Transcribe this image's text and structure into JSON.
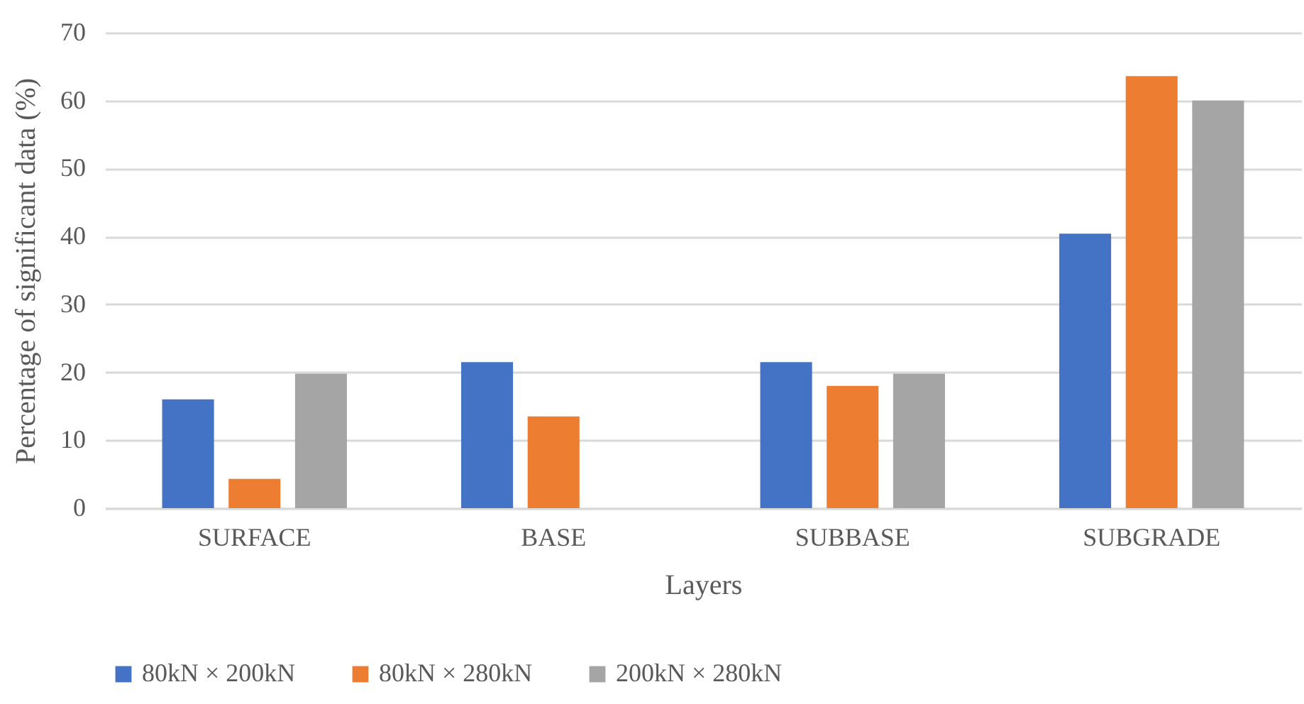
{
  "chart_data": {
    "type": "bar",
    "xlabel": "Layers",
    "ylabel": "Percentage of significant data (%)",
    "categories": [
      "SURFACE",
      "BASE",
      "SUBBASE",
      "SUBGRADE"
    ],
    "series": [
      {
        "name": "80kN × 200kN",
        "color": "#4472c4",
        "values": [
          16.0,
          21.5,
          21.5,
          40.4
        ]
      },
      {
        "name": "80kN × 280kN",
        "color": "#ed7d31",
        "values": [
          4.3,
          13.5,
          18.0,
          63.6
        ]
      },
      {
        "name": "200kN × 280kN",
        "color": "#a5a5a5",
        "values": [
          19.8,
          0,
          19.8,
          60.0
        ]
      }
    ],
    "ylim": [
      0,
      70
    ],
    "yticks": [
      0,
      10,
      20,
      30,
      40,
      50,
      60,
      70
    ],
    "grid": "y",
    "legend": "bottom"
  }
}
